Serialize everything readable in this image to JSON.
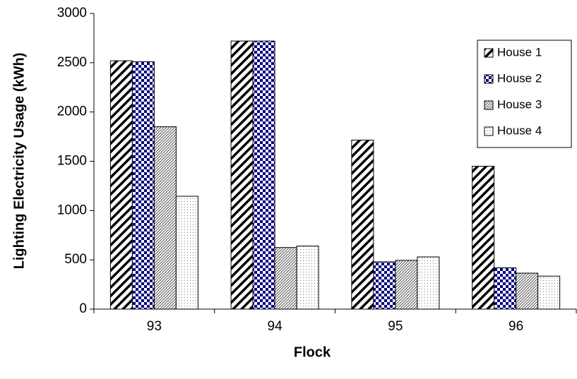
{
  "chart_data": {
    "type": "bar",
    "x_label": "Flock",
    "y_label": "Lighting Electricity Usage (kWh)",
    "categories": [
      "93",
      "94",
      "95",
      "96"
    ],
    "series": [
      {
        "name": "House 1",
        "color": "#000000",
        "pattern": "wide-diagonal",
        "values": [
          2520,
          2720,
          1715,
          1450
        ]
      },
      {
        "name": "House 2",
        "color": "#000080",
        "pattern": "checker",
        "values": [
          2510,
          2720,
          480,
          420
        ]
      },
      {
        "name": "House 3",
        "color": "#555555",
        "pattern": "thin-diagonal",
        "values": [
          1850,
          625,
          495,
          365
        ]
      },
      {
        "name": "House 4",
        "color": "#777777",
        "pattern": "dots",
        "values": [
          1145,
          640,
          530,
          335
        ]
      }
    ],
    "ylim": [
      0,
      3000
    ],
    "yticks": [
      0,
      500,
      1000,
      1500,
      2000,
      2500,
      3000
    ],
    "legend": "upper right"
  }
}
